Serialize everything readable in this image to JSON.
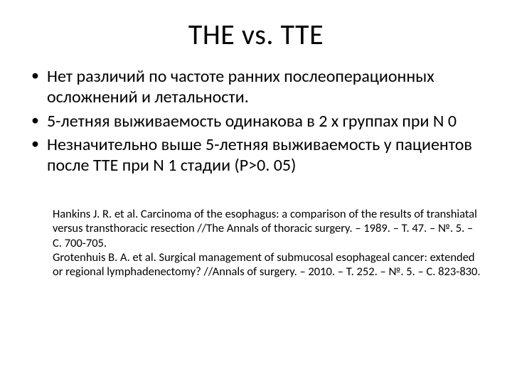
{
  "title": "THE vs. TTE",
  "bullets": [
    "Нет различий по частоте ранних послеоперационных осложнений и летальности.",
    "5-летняя выживаемость одинакова в 2 х группах при N 0",
    "Незначительно выше 5-летняя выживаемость у пациентов после TTE при N 1  стадии (P>0. 05)"
  ],
  "references": [
    "Hankins J. R. et al. Carcinoma of the esophagus: a comparison of the results of transhiatal versus transthoracic resection //The Annals of thoracic surgery. – 1989. – Т. 47. – №. 5. – С. 700-705.",
    "Grotenhuis B. A. et al. Surgical management of submucosal esophageal cancer: extended or regional lymphadenectomy? //Annals of surgery. – 2010. – Т. 252. – №. 5. – С. 823-830."
  ],
  "colors": {
    "background": "#ffffff",
    "text": "#000000"
  },
  "typography": {
    "title_fontsize_pt": 40,
    "body_fontsize_pt": 24,
    "refs_fontsize_pt": 16,
    "font_family": "Calibri"
  }
}
